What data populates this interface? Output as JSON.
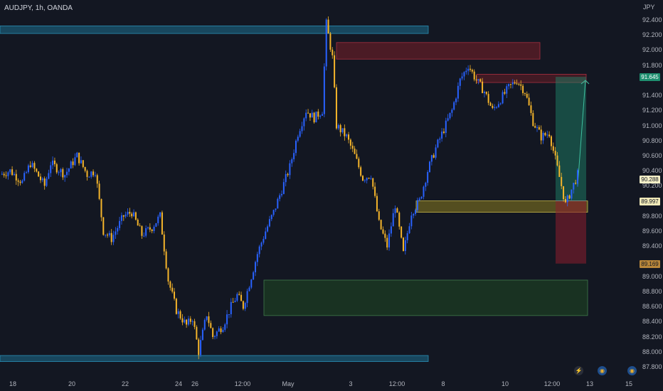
{
  "title": "AUDJPY, 1h, OANDA",
  "currency": "JPY",
  "y_ticks": [
    "92.400",
    "92.200",
    "92.000",
    "91.800",
    "91.400",
    "91.200",
    "91.000",
    "90.800",
    "90.600",
    "90.400",
    "90.200",
    "89.800",
    "89.600",
    "89.400",
    "89.000",
    "88.800",
    "88.600",
    "88.400",
    "88.200",
    "88.000",
    "87.800"
  ],
  "x_ticks": [
    "18",
    "20",
    "22",
    "24",
    "26",
    "12:00",
    "May",
    "3",
    "12:00",
    "8",
    "10",
    "12:00",
    "13",
    "15"
  ],
  "price_tags": [
    {
      "label": "91.645",
      "bg": "#1e8f6f",
      "fg": "#ffffff"
    },
    {
      "label": "90.288",
      "bg": "#f5f0c8",
      "fg": "#131722"
    },
    {
      "label": "89.997",
      "bg": "#f0e9b8",
      "fg": "#131722"
    },
    {
      "label": "89.169",
      "bg": "#b8863a",
      "fg": "#131722"
    }
  ],
  "controls": [
    {
      "name": "replay-icon",
      "glyph": "⚡"
    },
    {
      "name": "globe-icon",
      "glyph": "◉"
    },
    {
      "name": "globe-icon-2",
      "glyph": "◉"
    }
  ],
  "colors": {
    "background": "#131722",
    "bull": "#2962ff",
    "bear": "#f5b52b",
    "zone_blue": "#1e6f8f",
    "zone_red": "#7a1f28",
    "zone_green": "#1b3a23",
    "zone_yellow": "#6b6220",
    "target_green": "#1e5e4e"
  },
  "chart_data": {
    "type": "candlestick",
    "title": "AUDJPY, 1h, OANDA",
    "ylabel": "JPY",
    "ylim": [
      87.7,
      92.55
    ],
    "x_range": [
      17.5,
      16.3
    ],
    "series": [
      {
        "name": "AUDJPY",
        "values": "close path",
        "close": [
          [
            17.5,
            90.35
          ],
          [
            18,
            90.4
          ],
          [
            18.6,
            90.25
          ],
          [
            19,
            90.5
          ],
          [
            19.7,
            90.2
          ],
          [
            20,
            90.5
          ],
          [
            20.7,
            90.35
          ],
          [
            21.3,
            90.6
          ],
          [
            21.8,
            90.35
          ],
          [
            22.2,
            90.4
          ],
          [
            22.6,
            89.6
          ],
          [
            23,
            89.5
          ],
          [
            23.6,
            89.8
          ],
          [
            24,
            89.85
          ],
          [
            24.5,
            89.55
          ],
          [
            25,
            89.65
          ],
          [
            25.4,
            89.8
          ],
          [
            25.8,
            88.95
          ],
          [
            26.2,
            88.55
          ],
          [
            26.7,
            88.35
          ],
          [
            27,
            88.45
          ],
          [
            27.3,
            88.0
          ],
          [
            27.7,
            88.5
          ],
          [
            28,
            88.2
          ],
          [
            28.5,
            88.35
          ],
          [
            28.9,
            88.6
          ],
          [
            29.2,
            88.75
          ],
          [
            29.5,
            88.6
          ],
          [
            29.8,
            88.9
          ],
          [
            30.2,
            89.3
          ],
          [
            30.6,
            89.6
          ],
          [
            31,
            89.85
          ],
          [
            31.4,
            90.15
          ],
          [
            31.8,
            90.45
          ],
          [
            32.2,
            90.9
          ],
          [
            32.6,
            91.2
          ],
          [
            33,
            91.1
          ],
          [
            33.4,
            91.2
          ],
          [
            33.6,
            92.35
          ],
          [
            33.9,
            91.9
          ],
          [
            34.1,
            91.0
          ],
          [
            34.6,
            90.85
          ],
          [
            35,
            90.6
          ],
          [
            35.4,
            90.3
          ],
          [
            35.8,
            90.35
          ],
          [
            36.2,
            89.7
          ],
          [
            36.6,
            89.4
          ],
          [
            37,
            89.95
          ],
          [
            37.4,
            89.3
          ],
          [
            37.8,
            89.85
          ],
          [
            38.2,
            90.0
          ],
          [
            38.6,
            90.4
          ],
          [
            39,
            90.7
          ],
          [
            39.4,
            90.95
          ],
          [
            39.8,
            91.2
          ],
          [
            40.2,
            91.6
          ],
          [
            40.6,
            91.8
          ],
          [
            41,
            91.6
          ],
          [
            41.4,
            91.45
          ],
          [
            41.8,
            91.2
          ],
          [
            42.2,
            91.35
          ],
          [
            42.6,
            91.5
          ],
          [
            43,
            91.6
          ],
          [
            43.4,
            91.45
          ],
          [
            43.8,
            91.05
          ],
          [
            44.2,
            90.85
          ],
          [
            44.6,
            90.9
          ],
          [
            44.9,
            90.55
          ],
          [
            45.2,
            90.2
          ],
          [
            45.4,
            89.95
          ],
          [
            45.7,
            90.15
          ],
          [
            46,
            90.35
          ]
        ]
      }
    ],
    "zones": [
      {
        "name": "blue-top",
        "low": 92.22,
        "high": 92.32
      },
      {
        "name": "red-supply-1",
        "low": 91.88,
        "high": 92.1
      },
      {
        "name": "red-supply-2",
        "low": 91.57,
        "high": 91.68
      },
      {
        "name": "yellow-demand",
        "low": 89.85,
        "high": 90.0
      },
      {
        "name": "green-demand",
        "low": 88.48,
        "high": 88.95
      },
      {
        "name": "blue-bottom",
        "low": 87.87,
        "high": 87.95
      }
    ],
    "position": {
      "entry": 90.0,
      "target": 91.645,
      "stop": 89.169
    },
    "grid": false
  }
}
